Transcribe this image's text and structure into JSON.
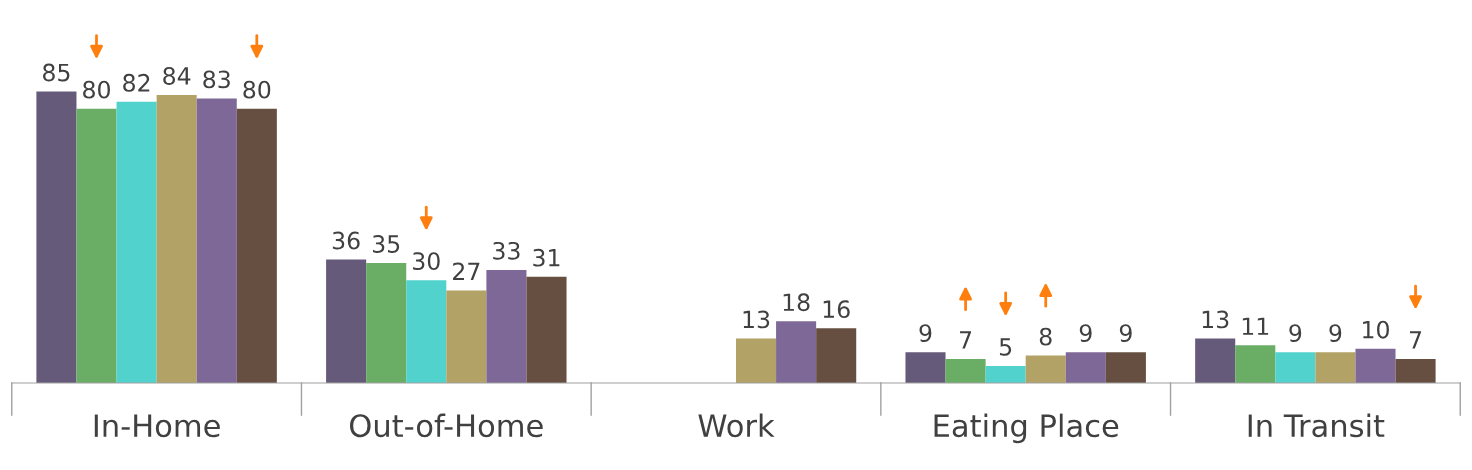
{
  "chart_data": {
    "type": "bar",
    "categories": [
      "In-Home",
      "Out-of-Home",
      "Work",
      "Eating Place",
      "In Transit"
    ],
    "data_labels": true,
    "grid": false,
    "legend": false,
    "series": [
      {
        "color": "#665a7a",
        "values": [
          85,
          36,
          null,
          9,
          13
        ]
      },
      {
        "color": "#6aae66",
        "values": [
          80,
          35,
          null,
          7,
          11
        ]
      },
      {
        "color": "#52d2cc",
        "values": [
          82,
          30,
          null,
          5,
          9
        ]
      },
      {
        "color": "#b2a265",
        "values": [
          84,
          27,
          13,
          8,
          9
        ]
      },
      {
        "color": "#7d6898",
        "values": [
          83,
          33,
          18,
          9,
          10
        ]
      },
      {
        "color": "#664f40",
        "values": [
          80,
          31,
          16,
          9,
          7
        ]
      }
    ]
  }
}
